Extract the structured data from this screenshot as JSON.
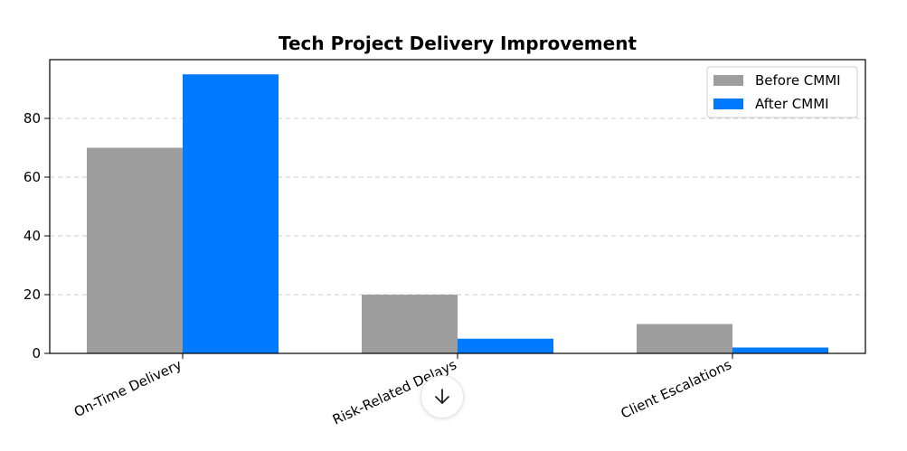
{
  "chart_data": {
    "type": "bar",
    "title": "Tech Project Delivery Improvement",
    "xlabel": "",
    "ylabel": "",
    "categories": [
      "On-Time Delivery",
      "Risk-Related Delays",
      "Client Escalations"
    ],
    "series": [
      {
        "name": "Before CMMI",
        "values": [
          70,
          20,
          10
        ],
        "color": "#9e9e9e"
      },
      {
        "name": "After CMMI",
        "values": [
          95,
          5,
          2
        ],
        "color": "#007bff"
      }
    ],
    "ylim": [
      0,
      100
    ],
    "yticks": [
      0,
      20,
      40,
      60,
      80
    ],
    "grid": true,
    "legend_position": "top-right"
  },
  "ui": {
    "scroll_down_icon": "arrow-down-icon"
  }
}
